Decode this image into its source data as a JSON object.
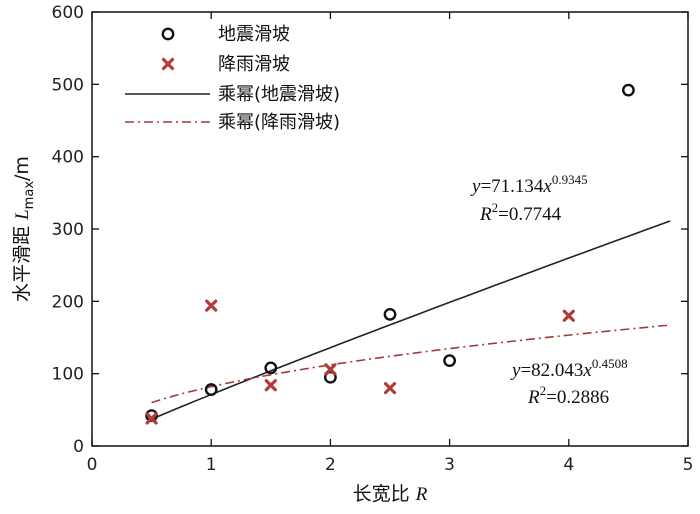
{
  "chart_data": {
    "type": "scatter",
    "xlabel": {
      "text": "长宽比",
      "var": "R"
    },
    "ylabel": {
      "text": "水平滑距",
      "var": "L",
      "sub": "max",
      "unit": "/m"
    },
    "xlim": [
      0,
      5
    ],
    "ylim": [
      0,
      600
    ],
    "xticks": [
      0,
      1,
      2,
      3,
      4,
      5
    ],
    "yticks": [
      0,
      100,
      200,
      300,
      400,
      500,
      600
    ],
    "grid": false,
    "legend_position": "top-left",
    "series": [
      {
        "name": "地震滑坡",
        "marker": "circle",
        "color": "#111111",
        "points": [
          [
            0.5,
            42
          ],
          [
            1.0,
            78
          ],
          [
            1.5,
            108
          ],
          [
            2.0,
            95
          ],
          [
            2.5,
            182
          ],
          [
            3.0,
            118
          ],
          [
            4.5,
            492
          ]
        ]
      },
      {
        "name": "降雨滑坡",
        "marker": "x",
        "color": "#b23a3a",
        "points": [
          [
            0.5,
            38
          ],
          [
            1.0,
            194
          ],
          [
            1.5,
            84
          ],
          [
            2.0,
            106
          ],
          [
            2.5,
            80
          ],
          [
            4.0,
            180
          ]
        ]
      }
    ],
    "fits": [
      {
        "name": "乘幂(地震滑坡)",
        "style": "solid",
        "color": "#222222",
        "coef": 71.134,
        "exp": 0.9345,
        "x_range": [
          0.5,
          4.85
        ],
        "equation": {
          "lhs": "y",
          "coef_text": "=71.134",
          "var": "x",
          "exp_text": "0.9345",
          "r2_text": "=0.7744"
        }
      },
      {
        "name": "乘幂(降雨滑坡)",
        "style": "dashdot",
        "color": "#a03a3a",
        "coef": 82.043,
        "exp": 0.4508,
        "x_range": [
          0.5,
          4.85
        ],
        "equation": {
          "lhs": "y",
          "coef_text": "=82.043",
          "var": "x",
          "exp_text": "0.4508",
          "r2_text": "=0.2886"
        }
      }
    ]
  }
}
